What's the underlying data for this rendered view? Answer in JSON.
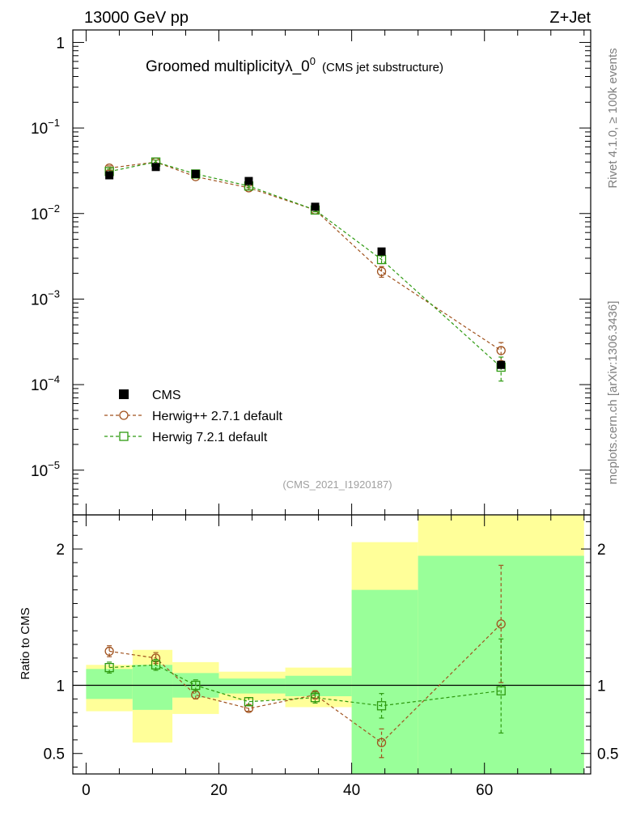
{
  "header": {
    "left": "13000 GeV pp",
    "right": "Z+Jet"
  },
  "title": {
    "main": "Groomed multiplicityλ_0",
    "sup": "0",
    "sub": "(CMS jet substructure)"
  },
  "side_labels": {
    "rivet": "Rivet 4.1.0, ≥ 100k events",
    "mcplots": "mcplots.cern.ch [arXiv:1306.3436]"
  },
  "analysis_id": "(CMS_2021_I1920187)",
  "colors": {
    "data": "#000000",
    "herwigpp": "#a0521e",
    "herwig7": "#2e9a10",
    "band_inner": "#99ff99",
    "band_outer": "#ffff99"
  },
  "chart_data": [
    {
      "type": "scatter",
      "panel": "main",
      "yscale": "log",
      "xlim": [
        -2,
        76
      ],
      "ylim": [
        3e-06,
        1.4
      ],
      "y_tick_labels": [
        {
          "v": 1,
          "base": "1",
          "exp": ""
        },
        {
          "v": 0.1,
          "base": "10",
          "exp": "−1"
        },
        {
          "v": 0.01,
          "base": "10",
          "exp": "−2"
        },
        {
          "v": 0.001,
          "base": "10",
          "exp": "−3"
        },
        {
          "v": 0.0001,
          "base": "10",
          "exp": "−4"
        },
        {
          "v": 1e-05,
          "base": "10",
          "exp": "−5"
        }
      ],
      "x": [
        3.5,
        10.5,
        16.5,
        24.5,
        34.5,
        44.5,
        62.5
      ],
      "series": [
        {
          "name": "CMS",
          "style": "data",
          "values": [
            0.028,
            0.035,
            0.029,
            0.024,
            0.012,
            0.0036,
            0.00017
          ]
        },
        {
          "name": "Herwig++ 2.7.1 default",
          "style": "herwigpp",
          "values": [
            0.034,
            0.04,
            0.027,
            0.02,
            0.011,
            0.0021,
            0.00025
          ],
          "err_low": [
            0.032,
            0.038,
            0.026,
            0.019,
            0.0105,
            0.0018,
            0.00019
          ],
          "err_high": [
            0.036,
            0.042,
            0.028,
            0.021,
            0.0115,
            0.0024,
            0.00031
          ]
        },
        {
          "name": "Herwig 7.2.1 default",
          "style": "herwig7",
          "values": [
            0.031,
            0.04,
            0.029,
            0.021,
            0.011,
            0.0029,
            0.00016
          ],
          "err_low": [
            0.029,
            0.038,
            0.028,
            0.02,
            0.0105,
            0.0026,
            0.00011
          ],
          "err_high": [
            0.033,
            0.042,
            0.03,
            0.022,
            0.0115,
            0.0032,
            0.00021
          ]
        }
      ],
      "legend": [
        "CMS",
        "Herwig++ 2.7.1 default",
        "Herwig 7.2.1 default"
      ]
    },
    {
      "type": "scatter",
      "panel": "ratio",
      "ylabel": "Ratio to CMS",
      "xlim": [
        -2,
        76
      ],
      "ylim": [
        0.35,
        2.25
      ],
      "y_ticks": [
        0.5,
        1,
        2
      ],
      "y_tick_labels": [
        "0.5",
        "1",
        "2"
      ],
      "x_ticks": [
        0,
        20,
        40,
        60
      ],
      "x_tick_labels": [
        "0",
        "20",
        "40",
        "60"
      ],
      "bands": [
        {
          "x0": 0,
          "x1": 7,
          "inner": [
            0.9,
            1.12
          ],
          "outer": [
            0.81,
            1.15
          ]
        },
        {
          "x0": 7,
          "x1": 13,
          "inner": [
            0.82,
            1.15
          ],
          "outer": [
            0.58,
            1.26
          ]
        },
        {
          "x0": 13,
          "x1": 20,
          "inner": [
            0.91,
            1.09
          ],
          "outer": [
            0.79,
            1.17
          ]
        },
        {
          "x0": 20,
          "x1": 30,
          "inner": [
            0.94,
            1.05
          ],
          "outer": [
            0.89,
            1.1
          ]
        },
        {
          "x0": 30,
          "x1": 40,
          "inner": [
            0.92,
            1.07
          ],
          "outer": [
            0.84,
            1.13
          ]
        },
        {
          "x0": 40,
          "x1": 50,
          "inner": [
            0.35,
            1.7
          ],
          "outer": [
            0.35,
            2.05
          ]
        },
        {
          "x0": 50,
          "x1": 75,
          "inner": [
            0.35,
            1.95
          ],
          "outer": [
            0.35,
            2.25
          ]
        }
      ],
      "x": [
        3.5,
        10.5,
        16.5,
        24.5,
        34.5,
        44.5,
        62.5
      ],
      "series": [
        {
          "name": "Herwig++ 2.7.1 default",
          "style": "herwigpp",
          "values": [
            1.25,
            1.2,
            0.93,
            0.83,
            0.93,
            0.58,
            1.45
          ],
          "err_low": [
            1.21,
            1.16,
            0.9,
            0.81,
            0.9,
            0.47,
            1.02
          ],
          "err_high": [
            1.29,
            1.24,
            0.97,
            0.86,
            0.96,
            0.68,
            1.88
          ]
        },
        {
          "name": "Herwig 7.2.1 default",
          "style": "herwig7",
          "values": [
            1.13,
            1.15,
            1.0,
            0.88,
            0.91,
            0.85,
            0.96
          ],
          "err_low": [
            1.09,
            1.11,
            0.96,
            0.85,
            0.87,
            0.76,
            0.65
          ],
          "err_high": [
            1.17,
            1.19,
            1.04,
            0.91,
            0.95,
            0.94,
            1.34
          ]
        }
      ]
    }
  ]
}
